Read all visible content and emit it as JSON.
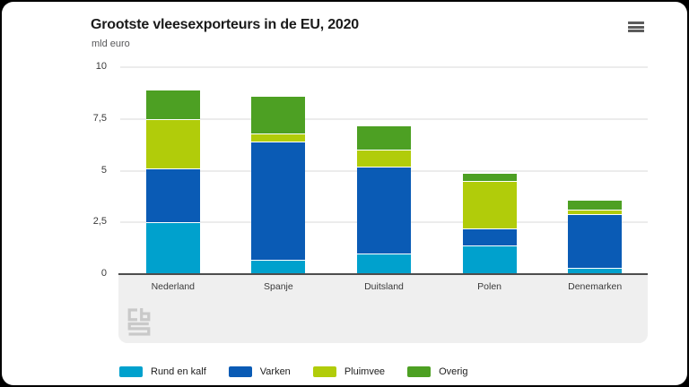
{
  "header": {
    "menu_icon": "hamburger-menu"
  },
  "chart_data": {
    "type": "bar",
    "stacked": true,
    "title": "Grootste vleesexporteurs in de EU, 2020",
    "unit_label": "mld euro",
    "categories": [
      "Nederland",
      "Spanje",
      "Duitsland",
      "Polen",
      "Denemarken"
    ],
    "series": [
      {
        "name": "Rund en kalf",
        "color": "#00a1cd",
        "values": [
          2.5,
          0.7,
          1.0,
          1.4,
          0.3
        ]
      },
      {
        "name": "Varken",
        "color": "#0a5bb5",
        "values": [
          2.6,
          5.7,
          4.2,
          0.8,
          2.6
        ]
      },
      {
        "name": "Pluimvee",
        "color": "#b1cc0a",
        "values": [
          2.4,
          0.4,
          0.8,
          2.3,
          0.2
        ]
      },
      {
        "name": "Overig",
        "color": "#4da023",
        "values": [
          1.4,
          1.8,
          1.2,
          0.4,
          0.5
        ]
      }
    ],
    "totals": [
      8.9,
      8.6,
      7.2,
      4.9,
      3.6
    ],
    "ylim": [
      0,
      10
    ],
    "yticks": [
      {
        "value": 0,
        "label": "0"
      },
      {
        "value": 2.5,
        "label": "2,5"
      },
      {
        "value": 5,
        "label": "5"
      },
      {
        "value": 7.5,
        "label": "7,5"
      },
      {
        "value": 10,
        "label": "10"
      }
    ],
    "grid": true,
    "legend_position": "bottom"
  },
  "footer": {
    "logo": "cbs-logo"
  },
  "colors": {
    "background": "#ffffff",
    "outer_border": "#000000",
    "gridline": "#ececec",
    "axis_line": "#4d4d4d",
    "xaxis_band": "#efefef",
    "text_primary": "#1a1a1a",
    "text_secondary": "#58585a",
    "logo_gray": "#c9c9c9"
  }
}
